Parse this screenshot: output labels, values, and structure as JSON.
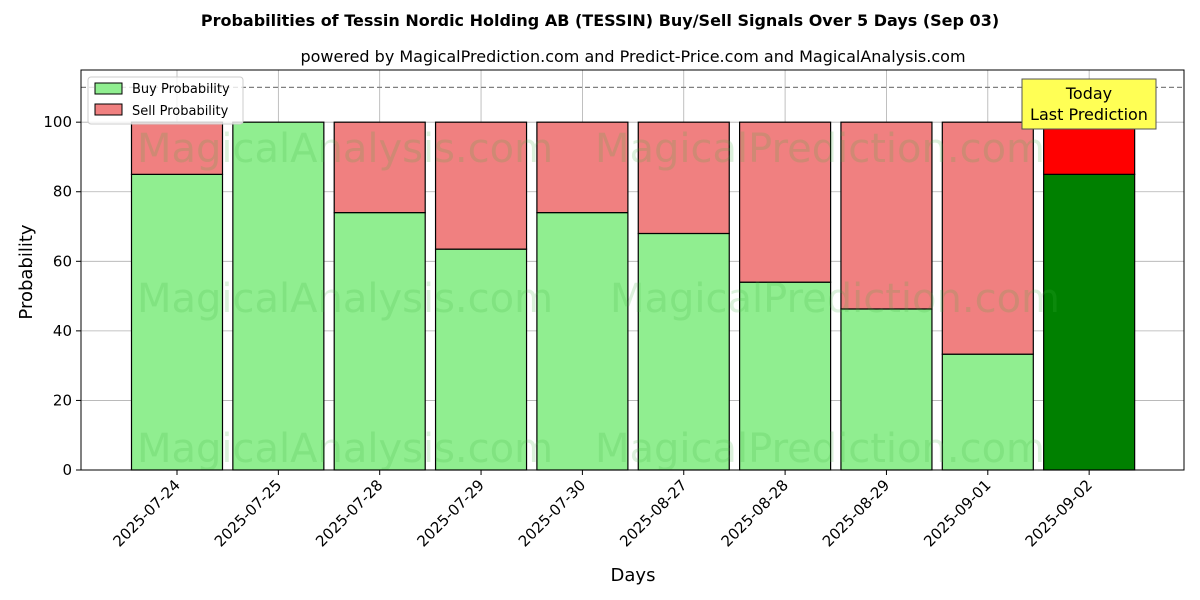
{
  "title": "Probabilities of Tessin Nordic Holding AB (TESSIN) Buy/Sell Signals Over 5 Days (Sep 03)",
  "subtitle": "powered by MagicalPrediction.com and Predict-Price.com and MagicalAnalysis.com",
  "xlabel": "Days",
  "ylabel": "Probability",
  "legend": {
    "buy": "Buy Probability",
    "sell": "Sell Probability",
    "placement": "top-left"
  },
  "annotation": {
    "line1": "Today",
    "line2": "Last Prediction"
  },
  "watermarks": [
    "MagicalAnalysis.com",
    "MagicalPrediction.com"
  ],
  "colors": {
    "buy": "#90ee90",
    "sell": "#f08080",
    "buy_today": "#008000",
    "sell_today": "#ff0000",
    "annotation_bg": "#ffff55",
    "grid": "#b0b0b0"
  },
  "chart_data": {
    "type": "bar",
    "stacked": true,
    "categories": [
      "2025-07-24",
      "2025-07-25",
      "2025-07-28",
      "2025-07-29",
      "2025-07-30",
      "2025-08-27",
      "2025-08-28",
      "2025-08-29",
      "2025-09-01",
      "2025-09-02"
    ],
    "series": [
      {
        "name": "Buy Probability",
        "values": [
          85,
          100,
          74,
          63.5,
          74,
          68,
          54,
          46.3,
          33.3,
          85
        ]
      },
      {
        "name": "Sell Probability",
        "values": [
          15,
          0,
          26,
          36.5,
          26,
          32,
          46,
          53.7,
          66.7,
          15
        ]
      }
    ],
    "highlight_index": 9,
    "reference_line": 110,
    "ylim": [
      0,
      115
    ],
    "yticks": [
      0,
      20,
      40,
      60,
      80,
      100
    ],
    "grid": true
  }
}
